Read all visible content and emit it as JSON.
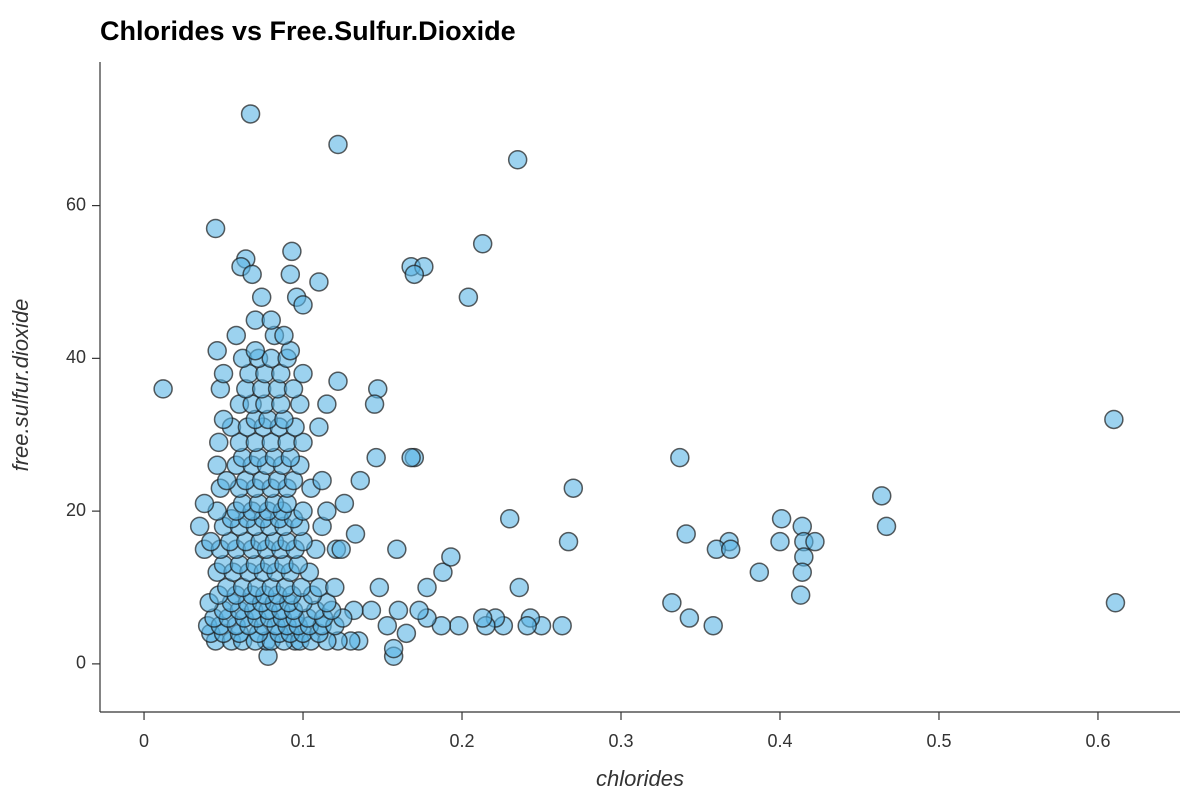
{
  "chart_data": {
    "type": "scatter",
    "title": "Chlorides vs Free.Sulfur.Dioxide",
    "x_label": "chlorides",
    "y_label": "free.sulfur.dioxide",
    "color": "#5ab4e5",
    "xlim": [
      -0.0277,
      0.6516
    ],
    "ylim": [
      -6.3,
      78.8
    ],
    "xticks": [
      0,
      0.1,
      0.2,
      0.3,
      0.4,
      0.5,
      0.6
    ],
    "yticks": [
      0,
      20,
      40,
      60
    ],
    "x": [
      0.067,
      0.122,
      0.235,
      0.045,
      0.213,
      0.064,
      0.061,
      0.068,
      0.093,
      0.092,
      0.168,
      0.176,
      0.17,
      0.204,
      0.096,
      0.1,
      0.074,
      0.11,
      0.012,
      0.61,
      0.337,
      0.27,
      0.464,
      0.23,
      0.401,
      0.414,
      0.467,
      0.341,
      0.368,
      0.4,
      0.415,
      0.422,
      0.267,
      0.36,
      0.369,
      0.415,
      0.387,
      0.414,
      0.413,
      0.332,
      0.611,
      0.343,
      0.358,
      0.236,
      0.263,
      0.25,
      0.243,
      0.241,
      0.226,
      0.221,
      0.215,
      0.213,
      0.198,
      0.187,
      0.178,
      0.173,
      0.165,
      0.157,
      0.157,
      0.159,
      0.148,
      0.146,
      0.147,
      0.145,
      0.143,
      0.153,
      0.16,
      0.17,
      0.168,
      0.188,
      0.193,
      0.178,
      0.136,
      0.133,
      0.126,
      0.122,
      0.121,
      0.124,
      0.132,
      0.135,
      0.13,
      0.122,
      0.078,
      0.077,
      0.095,
      0.045,
      0.055,
      0.062,
      0.07,
      0.08,
      0.088,
      0.098,
      0.105,
      0.115,
      0.042,
      0.05,
      0.06,
      0.072,
      0.085,
      0.092,
      0.1,
      0.11,
      0.04,
      0.048,
      0.058,
      0.066,
      0.075,
      0.083,
      0.09,
      0.097,
      0.104,
      0.112,
      0.12,
      0.044,
      0.053,
      0.063,
      0.071,
      0.079,
      0.087,
      0.095,
      0.103,
      0.113,
      0.125,
      0.05,
      0.06,
      0.069,
      0.078,
      0.086,
      0.094,
      0.108,
      0.118,
      0.041,
      0.055,
      0.065,
      0.074,
      0.082,
      0.091,
      0.1,
      0.115,
      0.047,
      0.058,
      0.068,
      0.076,
      0.084,
      0.093,
      0.106,
      0.052,
      0.062,
      0.071,
      0.08,
      0.089,
      0.099,
      0.11,
      0.12,
      0.046,
      0.056,
      0.066,
      0.075,
      0.083,
      0.092,
      0.104,
      0.05,
      0.06,
      0.07,
      0.079,
      0.088,
      0.097,
      0.038,
      0.048,
      0.058,
      0.068,
      0.077,
      0.086,
      0.095,
      0.108,
      0.042,
      0.054,
      0.064,
      0.073,
      0.082,
      0.09,
      0.1,
      0.035,
      0.05,
      0.06,
      0.07,
      0.079,
      0.088,
      0.098,
      0.112,
      0.055,
      0.065,
      0.075,
      0.085,
      0.094,
      0.046,
      0.058,
      0.068,
      0.078,
      0.087,
      0.1,
      0.115,
      0.038,
      0.062,
      0.072,
      0.082,
      0.09,
      0.048,
      0.06,
      0.07,
      0.08,
      0.09,
      0.105,
      0.052,
      0.064,
      0.074,
      0.084,
      0.094,
      0.112,
      0.046,
      0.058,
      0.068,
      0.077,
      0.087,
      0.098,
      0.062,
      0.072,
      0.082,
      0.092,
      0.047,
      0.06,
      0.07,
      0.08,
      0.09,
      0.1,
      0.055,
      0.065,
      0.075,
      0.085,
      0.095,
      0.11,
      0.05,
      0.07,
      0.078,
      0.088,
      0.06,
      0.068,
      0.076,
      0.086,
      0.098,
      0.115,
      0.048,
      0.064,
      0.074,
      0.084,
      0.094,
      0.05,
      0.066,
      0.076,
      0.086,
      0.1,
      0.062,
      0.072,
      0.08,
      0.09,
      0.046,
      0.07,
      0.092,
      0.058,
      0.082,
      0.088,
      0.07,
      0.08
    ],
    "values": [
      72,
      68,
      66,
      57,
      55,
      53,
      52,
      51,
      54,
      51,
      52,
      52,
      51,
      48,
      48,
      47,
      48,
      50,
      36,
      32,
      27,
      23,
      22,
      19,
      19,
      18,
      18,
      17,
      16,
      16,
      16,
      16,
      16,
      15,
      15,
      14,
      12,
      12,
      9,
      8,
      8,
      6,
      5,
      10,
      5,
      5,
      6,
      5,
      5,
      6,
      5,
      6,
      5,
      5,
      6,
      7,
      4,
      1,
      2,
      15,
      10,
      27,
      36,
      34,
      7,
      5,
      7,
      27,
      27,
      12,
      14,
      10,
      24,
      17,
      21,
      37,
      15,
      15,
      7,
      3,
      3,
      3,
      1,
      3,
      3,
      3,
      3,
      3,
      3,
      3,
      3,
      3,
      3,
      3,
      4,
      4,
      4,
      4,
      4,
      4,
      4,
      4,
      5,
      5,
      5,
      5,
      5,
      5,
      5,
      5,
      5,
      5,
      5,
      6,
      6,
      6,
      6,
      6,
      6,
      6,
      6,
      6,
      6,
      7,
      7,
      7,
      7,
      7,
      7,
      7,
      7,
      8,
      8,
      8,
      8,
      8,
      8,
      8,
      8,
      9,
      9,
      9,
      9,
      9,
      9,
      9,
      10,
      10,
      10,
      10,
      10,
      10,
      10,
      10,
      12,
      12,
      12,
      12,
      12,
      12,
      12,
      13,
      13,
      13,
      13,
      13,
      13,
      15,
      15,
      15,
      15,
      15,
      15,
      15,
      15,
      16,
      16,
      16,
      16,
      16,
      16,
      16,
      18,
      18,
      18,
      18,
      18,
      18,
      18,
      18,
      19,
      19,
      19,
      19,
      19,
      20,
      20,
      20,
      20,
      20,
      20,
      20,
      21,
      21,
      21,
      21,
      21,
      23,
      23,
      23,
      23,
      23,
      23,
      24,
      24,
      24,
      24,
      24,
      24,
      26,
      26,
      26,
      26,
      26,
      26,
      27,
      27,
      27,
      27,
      29,
      29,
      29,
      29,
      29,
      29,
      31,
      31,
      31,
      31,
      31,
      31,
      32,
      32,
      32,
      32,
      34,
      34,
      34,
      34,
      34,
      34,
      36,
      36,
      36,
      36,
      36,
      38,
      38,
      38,
      38,
      38,
      40,
      40,
      40,
      40,
      41,
      41,
      41,
      43,
      43,
      43,
      45,
      45
    ]
  }
}
